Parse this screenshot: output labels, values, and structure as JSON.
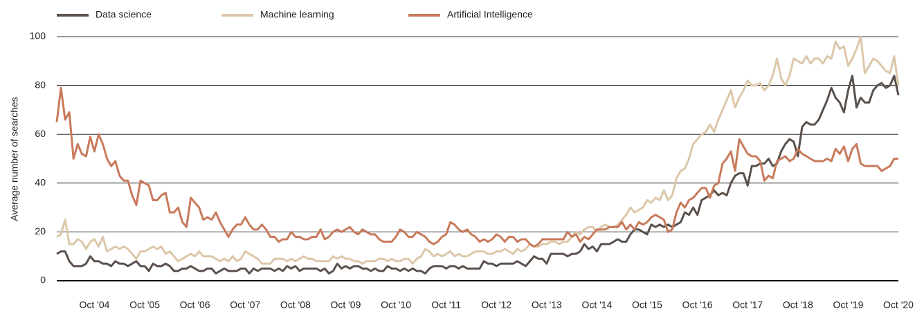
{
  "chart_data": {
    "type": "line",
    "y_label": "Average number of searches",
    "categories": [
      null,
      null,
      null,
      null,
      null,
      null,
      null,
      null,
      null,
      "Oct '04",
      null,
      null,
      null,
      null,
      null,
      null,
      null,
      null,
      null,
      null,
      null,
      "Oct '05",
      null,
      null,
      null,
      null,
      null,
      null,
      null,
      null,
      null,
      null,
      null,
      "Oct '06",
      null,
      null,
      null,
      null,
      null,
      null,
      null,
      null,
      null,
      null,
      null,
      "Oct '07",
      null,
      null,
      null,
      null,
      null,
      null,
      null,
      null,
      null,
      null,
      null,
      "Oct '08",
      null,
      null,
      null,
      null,
      null,
      null,
      null,
      null,
      null,
      null,
      null,
      "Oct '09",
      null,
      null,
      null,
      null,
      null,
      null,
      null,
      null,
      null,
      null,
      null,
      "Oct '10",
      null,
      null,
      null,
      null,
      null,
      null,
      null,
      null,
      null,
      null,
      null,
      "Oct '11",
      null,
      null,
      null,
      null,
      null,
      null,
      null,
      null,
      null,
      null,
      null,
      "Oct '12",
      null,
      null,
      null,
      null,
      null,
      null,
      null,
      null,
      null,
      null,
      null,
      "Oct '13",
      null,
      null,
      null,
      null,
      null,
      null,
      null,
      null,
      null,
      null,
      null,
      "Oct '14",
      null,
      null,
      null,
      null,
      null,
      null,
      null,
      null,
      null,
      null,
      null,
      "Oct '15",
      null,
      null,
      null,
      null,
      null,
      null,
      null,
      null,
      null,
      null,
      null,
      "Oct '16",
      null,
      null,
      null,
      null,
      null,
      null,
      null,
      null,
      null,
      null,
      null,
      "Oct '17",
      null,
      null,
      null,
      null,
      null,
      null,
      null,
      null,
      null,
      null,
      null,
      "Oct '18",
      null,
      null,
      null,
      null,
      null,
      null,
      null,
      null,
      null,
      null,
      null,
      "Oct '19",
      null,
      null,
      null,
      null,
      null,
      null,
      null,
      null,
      null,
      null,
      null,
      "Oct '20"
    ],
    "series": [
      {
        "name": "Data science",
        "color": "#5a514c",
        "values": [
          11,
          12,
          12,
          8,
          6,
          6,
          6,
          7,
          10,
          8,
          8,
          7,
          7,
          6,
          8,
          7,
          7,
          6,
          7,
          8,
          6,
          6,
          4,
          7,
          6,
          6,
          7,
          6,
          4,
          4,
          5,
          5,
          6,
          5,
          4,
          4,
          5,
          5,
          3,
          4,
          5,
          4,
          4,
          4,
          5,
          5,
          3,
          5,
          4,
          5,
          5,
          5,
          4,
          5,
          4,
          6,
          5,
          6,
          4,
          5,
          5,
          5,
          5,
          4,
          5,
          3,
          4,
          7,
          5,
          6,
          5,
          6,
          6,
          5,
          5,
          4,
          5,
          4,
          4,
          6,
          5,
          5,
          4,
          5,
          4,
          5,
          4,
          4,
          3,
          5,
          6,
          6,
          6,
          5,
          6,
          6,
          5,
          6,
          5,
          5,
          5,
          5,
          8,
          7,
          7,
          6,
          7,
          7,
          7,
          7,
          8,
          7,
          6,
          8,
          10,
          9,
          9,
          7,
          11,
          11,
          11,
          11,
          10,
          11,
          11,
          12,
          15,
          13,
          14,
          12,
          15,
          15,
          15,
          16,
          17,
          16,
          16,
          19,
          21,
          21,
          20,
          19,
          23,
          22,
          23,
          22,
          23,
          22,
          23,
          24,
          28,
          27,
          30,
          27,
          33,
          34,
          35,
          37,
          35,
          36,
          35,
          40,
          43,
          44,
          44,
          39,
          47,
          47,
          48,
          48,
          50,
          47,
          48,
          53,
          56,
          58,
          57,
          51,
          63,
          65,
          64,
          64,
          66,
          70,
          74,
          79,
          75,
          73,
          69,
          78,
          84,
          71,
          75,
          73,
          73,
          78,
          80,
          81,
          79,
          80,
          84,
          76
        ]
      },
      {
        "name": "Machine learning",
        "color": "#dcc7a9",
        "values": [
          18,
          19,
          25,
          15,
          15,
          17,
          16,
          13,
          16,
          17,
          14,
          18,
          12,
          13,
          14,
          13,
          14,
          13,
          11,
          9,
          12,
          12,
          13,
          14,
          13,
          14,
          11,
          12,
          10,
          8,
          9,
          10,
          11,
          10,
          12,
          10,
          10,
          10,
          9,
          8,
          9,
          8,
          10,
          8,
          9,
          12,
          11,
          10,
          9,
          7,
          7,
          7,
          9,
          9,
          9,
          8,
          9,
          8,
          9,
          10,
          9,
          9,
          8,
          8,
          8,
          8,
          10,
          9,
          10,
          9,
          9,
          8,
          8,
          7,
          8,
          8,
          8,
          9,
          9,
          8,
          9,
          8,
          8,
          9,
          9,
          7,
          9,
          10,
          13,
          12,
          10,
          11,
          10,
          11,
          12,
          10,
          11,
          10,
          10,
          11,
          12,
          12,
          12,
          11,
          11,
          12,
          12,
          13,
          12,
          11,
          13,
          12,
          13,
          15,
          14,
          14,
          15,
          15,
          16,
          16,
          15,
          16,
          16,
          18,
          20,
          19,
          21,
          22,
          22,
          20,
          22,
          23,
          22,
          22,
          23,
          25,
          27,
          30,
          28,
          29,
          30,
          33,
          32,
          34,
          33,
          37,
          33,
          35,
          42,
          45,
          46,
          50,
          56,
          58,
          60,
          61,
          64,
          61,
          66,
          70,
          74,
          78,
          71,
          75,
          78,
          82,
          80,
          80,
          81,
          78,
          80,
          84,
          91,
          83,
          80,
          84,
          91,
          90,
          89,
          92,
          89,
          91,
          91,
          89,
          92,
          91,
          98,
          95,
          96,
          88,
          91,
          95,
          100,
          85,
          88,
          91,
          90,
          88,
          86,
          85,
          92,
          80
        ]
      },
      {
        "name": "Artificial Intelligence",
        "color": "#c87a5b",
        "values": [
          65,
          79,
          66,
          69,
          50,
          56,
          52,
          51,
          59,
          53,
          60,
          56,
          50,
          47,
          49,
          43,
          41,
          41,
          35,
          31,
          41,
          40,
          39,
          33,
          33,
          35,
          36,
          28,
          28,
          30,
          24,
          22,
          34,
          32,
          30,
          25,
          26,
          25,
          28,
          24,
          21,
          18,
          21,
          23,
          23,
          26,
          23,
          21,
          21,
          23,
          21,
          18,
          18,
          16,
          17,
          17,
          20,
          18,
          18,
          17,
          17,
          18,
          18,
          21,
          17,
          18,
          20,
          21,
          20,
          21,
          22,
          20,
          19,
          21,
          20,
          19,
          19,
          17,
          16,
          16,
          16,
          18,
          21,
          20,
          18,
          18,
          20,
          19,
          18,
          16,
          15,
          16,
          18,
          19,
          24,
          23,
          21,
          20,
          21,
          19,
          18,
          16,
          17,
          16,
          17,
          19,
          18,
          16,
          18,
          18,
          16,
          17,
          17,
          15,
          14,
          15,
          17,
          17,
          17,
          17,
          17,
          17,
          20,
          18,
          19,
          16,
          18,
          17,
          19,
          21,
          21,
          21,
          22,
          22,
          22,
          24,
          21,
          23,
          21,
          24,
          23,
          24,
          26,
          27,
          26,
          25,
          20,
          21,
          28,
          32,
          30,
          33,
          34,
          36,
          38,
          38,
          34,
          39,
          40,
          48,
          50,
          53,
          45,
          58,
          55,
          52,
          51,
          51,
          49,
          41,
          43,
          42,
          49,
          50,
          51,
          49,
          50,
          54,
          52,
          51,
          50,
          49,
          49,
          49,
          50,
          49,
          54,
          52,
          55,
          49,
          54,
          56,
          48,
          47,
          47,
          47,
          47,
          45,
          46,
          47,
          50,
          50
        ]
      }
    ],
    "ylim": [
      0,
      100
    ],
    "yticks": [
      0,
      20,
      40,
      60,
      80,
      100
    ],
    "grid": true
  }
}
